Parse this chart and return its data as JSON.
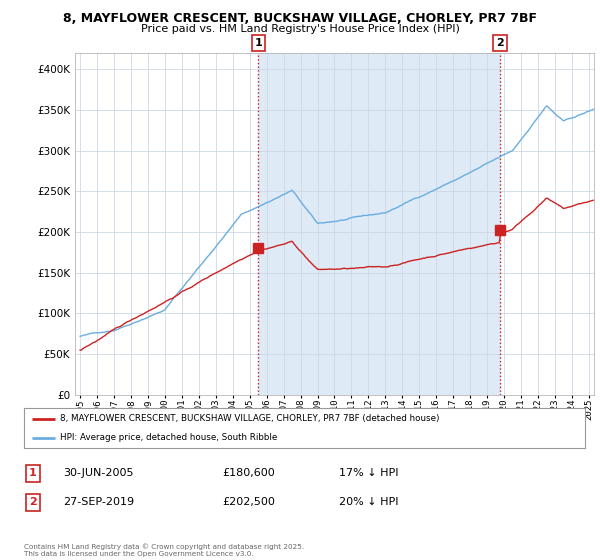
{
  "title_line1": "8, MAYFLOWER CRESCENT, BUCKSHAW VILLAGE, CHORLEY, PR7 7BF",
  "title_line2": "Price paid vs. HM Land Registry's House Price Index (HPI)",
  "legend_line1": "8, MAYFLOWER CRESCENT, BUCKSHAW VILLAGE, CHORLEY, PR7 7BF (detached house)",
  "legend_line2": "HPI: Average price, detached house, South Ribble",
  "annotation1_label": "1",
  "annotation1_date": "30-JUN-2005",
  "annotation1_price": "£180,600",
  "annotation1_hpi": "17% ↓ HPI",
  "annotation2_label": "2",
  "annotation2_date": "27-SEP-2019",
  "annotation2_price": "£202,500",
  "annotation2_hpi": "20% ↓ HPI",
  "copyright": "Contains HM Land Registry data © Crown copyright and database right 2025.\nThis data is licensed under the Open Government Licence v3.0.",
  "hpi_color": "#6aade0",
  "price_color": "#cc2222",
  "annotation_color": "#cc2222",
  "vline_color": "#cc2222",
  "background_color": "#ffffff",
  "grid_color": "#d0d8e8",
  "shade_color": "#deeaf5",
  "ylim": [
    0,
    420000
  ],
  "yticks": [
    0,
    50000,
    100000,
    150000,
    200000,
    250000,
    300000,
    350000,
    400000
  ],
  "purchase1_x": 2005.5,
  "purchase1_y": 180600,
  "purchase2_x": 2019.75,
  "purchase2_y": 202500,
  "xmin": 1994.7,
  "xmax": 2025.3
}
